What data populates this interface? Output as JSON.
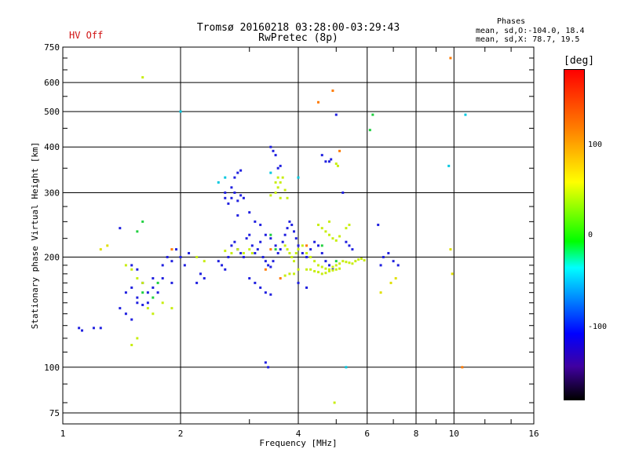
{
  "header": {
    "title_line1": "Tromsø 20160218 03:28:00-03:29:43",
    "title_line2": "RwPretec (8p)",
    "status": "HV Off"
  },
  "phases": {
    "title": "Phases",
    "line1": "mean, sd,O:-104.0, 18.4",
    "line2": "mean, sd,X: 78.7, 19.5"
  },
  "colorbar": {
    "label": "[deg]",
    "ticks": [
      "100",
      "0",
      "-100"
    ]
  },
  "chart_data": {
    "type": "scatter",
    "xlabel": "Frequency [MHz]",
    "ylabel": "Stationary phase Virtual Height [km]",
    "xscale": "log",
    "yscale": "log",
    "xlim": [
      1,
      16
    ],
    "ylim": [
      70,
      750
    ],
    "x_ticks": [
      1,
      2,
      4,
      6,
      8,
      10,
      16
    ],
    "x_tick_labels": [
      "1",
      "2",
      "4",
      "6",
      "8",
      "10",
      "16"
    ],
    "y_ticks": [
      75,
      100,
      200,
      300,
      400,
      500,
      600,
      750
    ],
    "y_tick_labels": [
      "75",
      "100",
      "200",
      "300",
      "400",
      "500",
      "600",
      "750"
    ],
    "grid": true,
    "colormap_range_deg": [
      -180,
      180
    ],
    "series": [
      {
        "color": "#2020e0",
        "points": [
          [
            1.1,
            128
          ],
          [
            1.12,
            126
          ],
          [
            1.2,
            128
          ],
          [
            1.25,
            128
          ],
          [
            1.4,
            145
          ],
          [
            1.45,
            140
          ],
          [
            1.5,
            135
          ],
          [
            1.55,
            150
          ],
          [
            1.6,
            148
          ],
          [
            1.65,
            160
          ],
          [
            1.45,
            160
          ],
          [
            1.5,
            165
          ],
          [
            1.55,
            155
          ],
          [
            1.6,
            170
          ],
          [
            1.7,
            175
          ],
          [
            1.75,
            160
          ],
          [
            1.8,
            190
          ],
          [
            1.85,
            200
          ],
          [
            1.9,
            195
          ],
          [
            1.95,
            210
          ],
          [
            2.0,
            200
          ],
          [
            2.05,
            190
          ],
          [
            2.1,
            205
          ],
          [
            1.4,
            240
          ],
          [
            1.5,
            190
          ],
          [
            1.55,
            185
          ],
          [
            1.65,
            150
          ],
          [
            1.7,
            165
          ],
          [
            1.8,
            175
          ],
          [
            1.9,
            170
          ],
          [
            2.5,
            195
          ],
          [
            2.55,
            190
          ],
          [
            2.6,
            185
          ],
          [
            2.65,
            200
          ],
          [
            2.7,
            215
          ],
          [
            2.75,
            220
          ],
          [
            2.8,
            210
          ],
          [
            2.85,
            205
          ],
          [
            2.9,
            200
          ],
          [
            2.95,
            225
          ],
          [
            3.0,
            230
          ],
          [
            3.05,
            215
          ],
          [
            3.1,
            205
          ],
          [
            3.15,
            210
          ],
          [
            3.2,
            220
          ],
          [
            3.25,
            200
          ],
          [
            3.3,
            195
          ],
          [
            3.35,
            190
          ],
          [
            3.4,
            188
          ],
          [
            3.45,
            195
          ],
          [
            2.7,
            290
          ],
          [
            2.75,
            300
          ],
          [
            2.8,
            285
          ],
          [
            2.85,
            295
          ],
          [
            2.9,
            290
          ],
          [
            2.75,
            330
          ],
          [
            2.8,
            340
          ],
          [
            2.85,
            345
          ],
          [
            2.7,
            310
          ],
          [
            2.8,
            260
          ],
          [
            3.5,
            215
          ],
          [
            3.55,
            205
          ],
          [
            3.6,
            210
          ],
          [
            3.65,
            220
          ],
          [
            3.7,
            230
          ],
          [
            3.75,
            240
          ],
          [
            3.8,
            250
          ],
          [
            3.85,
            245
          ],
          [
            3.9,
            235
          ],
          [
            3.95,
            225
          ],
          [
            4.0,
            215
          ],
          [
            4.1,
            205
          ],
          [
            4.2,
            200
          ],
          [
            4.3,
            210
          ],
          [
            4.4,
            220
          ],
          [
            4.5,
            215
          ],
          [
            4.6,
            205
          ],
          [
            4.7,
            195
          ],
          [
            4.8,
            190
          ],
          [
            4.9,
            185
          ],
          [
            3.4,
            400
          ],
          [
            3.45,
            390
          ],
          [
            3.5,
            380
          ],
          [
            3.55,
            350
          ],
          [
            3.6,
            355
          ],
          [
            4.6,
            380
          ],
          [
            4.7,
            365
          ],
          [
            4.8,
            365
          ],
          [
            4.85,
            370
          ],
          [
            5.0,
            490
          ],
          [
            5.2,
            300
          ],
          [
            5.3,
            220
          ],
          [
            5.4,
            215
          ],
          [
            5.5,
            210
          ],
          [
            6.4,
            245
          ],
          [
            6.5,
            190
          ],
          [
            6.6,
            200
          ],
          [
            6.8,
            205
          ],
          [
            7.0,
            195
          ],
          [
            7.2,
            190
          ],
          [
            3.0,
            175
          ],
          [
            3.1,
            170
          ],
          [
            3.2,
            165
          ],
          [
            3.3,
            160
          ],
          [
            3.4,
            158
          ],
          [
            3.3,
            103
          ],
          [
            3.35,
            100
          ],
          [
            2.2,
            170
          ],
          [
            2.25,
            180
          ],
          [
            2.3,
            175
          ],
          [
            2.6,
            290
          ],
          [
            2.65,
            280
          ],
          [
            2.6,
            300
          ],
          [
            3.0,
            265
          ],
          [
            3.1,
            250
          ],
          [
            3.2,
            245
          ],
          [
            3.3,
            230
          ],
          [
            3.4,
            225
          ],
          [
            4.0,
            170
          ],
          [
            4.2,
            165
          ]
        ]
      },
      {
        "color": "#c8ee10",
        "points": [
          [
            1.45,
            190
          ],
          [
            1.5,
            185
          ],
          [
            1.55,
            175
          ],
          [
            1.6,
            170
          ],
          [
            1.65,
            145
          ],
          [
            1.7,
            140
          ],
          [
            1.5,
            115
          ],
          [
            1.55,
            120
          ],
          [
            1.8,
            150
          ],
          [
            1.9,
            145
          ],
          [
            3.5,
            300
          ],
          [
            3.55,
            310
          ],
          [
            3.6,
            320
          ],
          [
            3.65,
            330
          ],
          [
            3.7,
            305
          ],
          [
            3.75,
            290
          ],
          [
            3.6,
            290
          ],
          [
            3.4,
            295
          ],
          [
            3.5,
            320
          ],
          [
            3.55,
            330
          ],
          [
            3.7,
            215
          ],
          [
            3.75,
            210
          ],
          [
            3.8,
            205
          ],
          [
            3.85,
            200
          ],
          [
            3.9,
            195
          ],
          [
            3.95,
            205
          ],
          [
            4.0,
            210
          ],
          [
            4.1,
            215
          ],
          [
            4.2,
            205
          ],
          [
            4.3,
            200
          ],
          [
            4.4,
            195
          ],
          [
            4.5,
            190
          ],
          [
            4.6,
            188
          ],
          [
            4.7,
            186
          ],
          [
            4.8,
            185
          ],
          [
            4.9,
            188
          ],
          [
            5.0,
            190
          ],
          [
            5.1,
            192
          ],
          [
            5.2,
            195
          ],
          [
            5.3,
            194
          ],
          [
            5.4,
            193
          ],
          [
            5.5,
            192
          ],
          [
            5.6,
            195
          ],
          [
            5.7,
            197
          ],
          [
            5.8,
            198
          ],
          [
            5.9,
            196
          ],
          [
            4.3,
            185
          ],
          [
            4.4,
            183
          ],
          [
            4.5,
            182
          ],
          [
            4.6,
            180
          ],
          [
            4.7,
            181
          ],
          [
            4.8,
            183
          ],
          [
            4.9,
            184
          ],
          [
            5.0,
            185
          ],
          [
            5.1,
            186
          ],
          [
            4.2,
            185
          ],
          [
            4.0,
            185
          ],
          [
            3.9,
            180
          ],
          [
            3.8,
            180
          ],
          [
            3.7,
            178
          ],
          [
            4.5,
            245
          ],
          [
            4.6,
            240
          ],
          [
            4.7,
            235
          ],
          [
            4.8,
            230
          ],
          [
            4.9,
            225
          ],
          [
            5.0,
            222
          ],
          [
            5.1,
            228
          ],
          [
            5.3,
            240
          ],
          [
            5.4,
            245
          ],
          [
            4.8,
            250
          ],
          [
            5.0,
            360
          ],
          [
            5.05,
            355
          ],
          [
            3.0,
            210
          ],
          [
            3.05,
            205
          ],
          [
            2.9,
            205
          ],
          [
            2.8,
            210
          ],
          [
            2.7,
            205
          ],
          [
            2.6,
            208
          ],
          [
            2.2,
            200
          ],
          [
            2.3,
            195
          ],
          [
            1.6,
            620
          ],
          [
            4.95,
            80
          ]
        ]
      },
      {
        "color": "#20d040",
        "points": [
          [
            1.6,
            250
          ],
          [
            1.55,
            235
          ],
          [
            1.6,
            160
          ],
          [
            1.7,
            155
          ],
          [
            1.75,
            170
          ],
          [
            3.4,
            230
          ],
          [
            3.5,
            210
          ],
          [
            4.6,
            215
          ],
          [
            6.1,
            445
          ],
          [
            6.2,
            490
          ],
          [
            5.0,
            195
          ]
        ]
      },
      {
        "color": "#ff7a00",
        "points": [
          [
            4.5,
            530
          ],
          [
            4.9,
            570
          ],
          [
            3.3,
            185
          ],
          [
            3.6,
            175
          ],
          [
            5.1,
            390
          ],
          [
            9.8,
            700
          ],
          [
            10.5,
            100
          ],
          [
            1.9,
            210
          ],
          [
            4.2,
            215
          ],
          [
            3.4,
            210
          ]
        ]
      },
      {
        "color": "#00c8e0",
        "points": [
          [
            2.5,
            320
          ],
          [
            2.6,
            330
          ],
          [
            9.7,
            355
          ],
          [
            10.7,
            490
          ],
          [
            2.0,
            500
          ],
          [
            5.3,
            100
          ],
          [
            3.4,
            340
          ],
          [
            4.0,
            330
          ]
        ]
      },
      {
        "color": "#e0e000",
        "points": [
          [
            6.9,
            170
          ],
          [
            7.1,
            175
          ],
          [
            6.5,
            160
          ],
          [
            9.8,
            210
          ],
          [
            9.9,
            180
          ],
          [
            1.3,
            215
          ],
          [
            1.25,
            210
          ]
        ]
      }
    ]
  }
}
